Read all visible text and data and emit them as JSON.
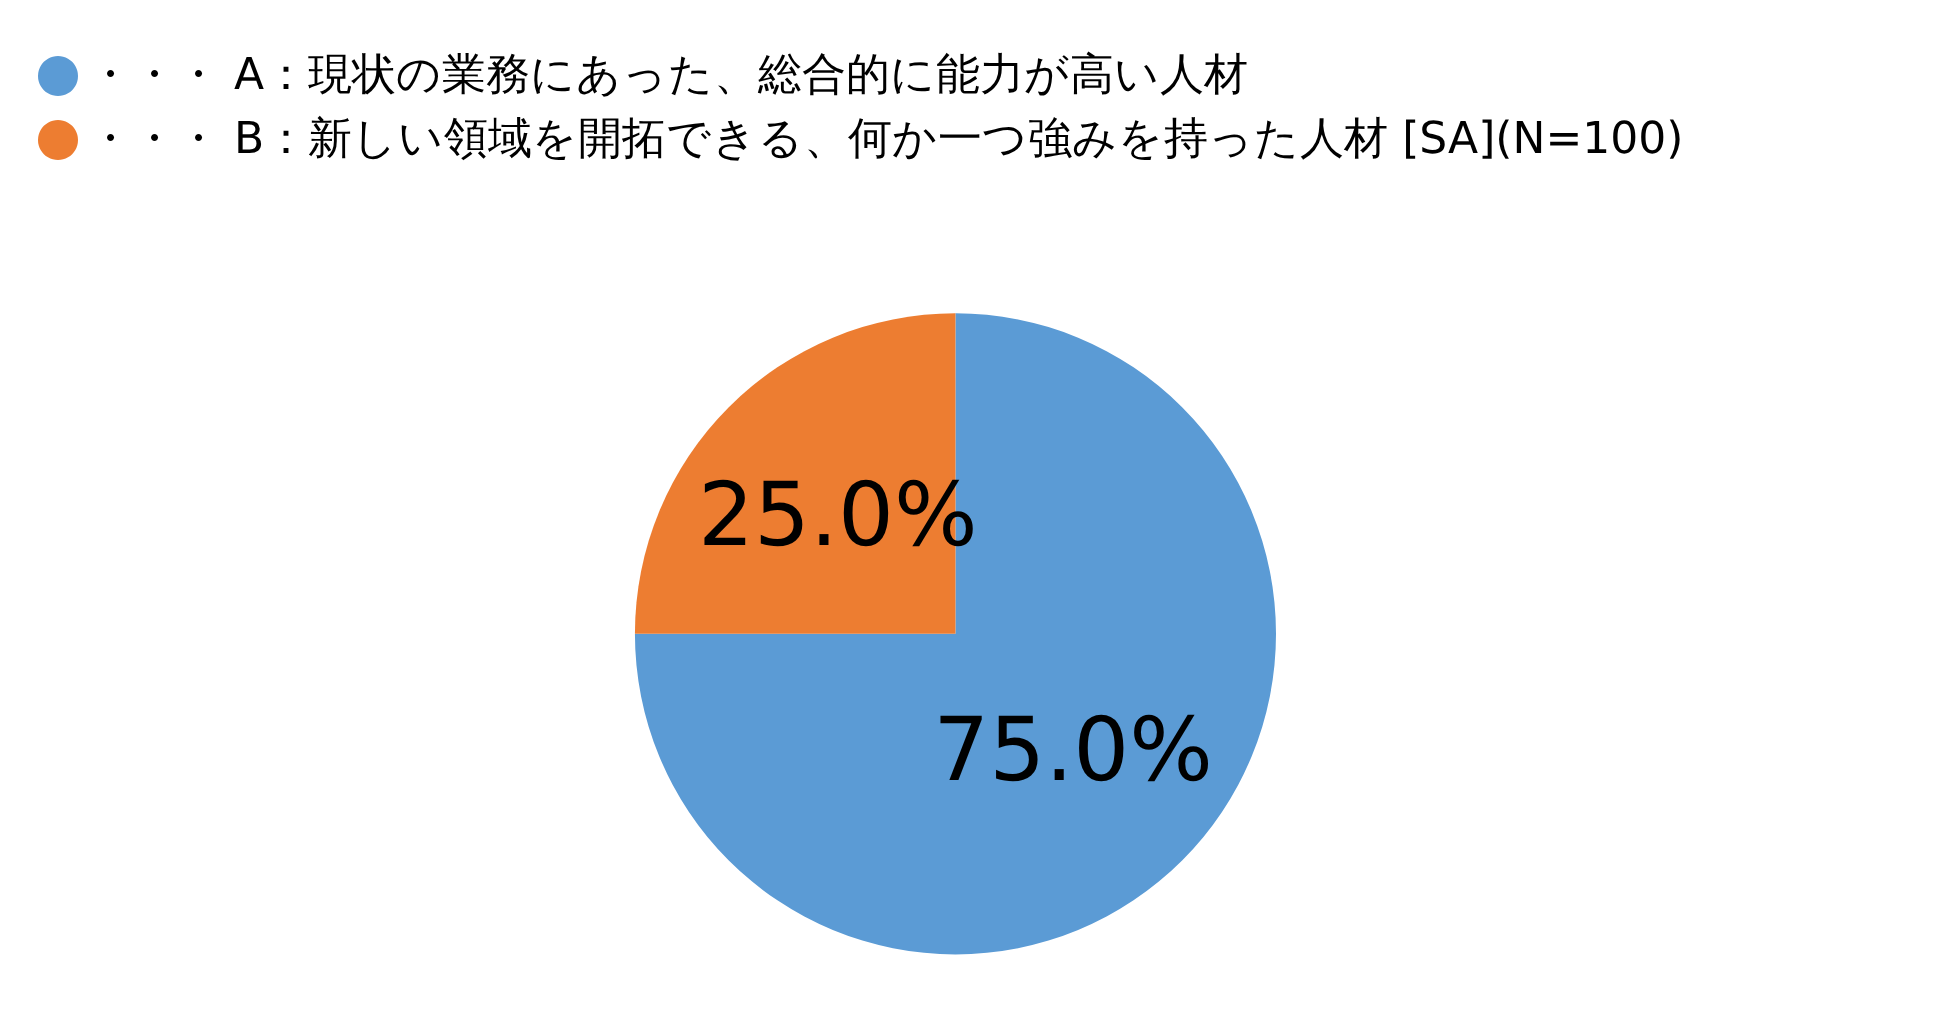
{
  "chart_data": {
    "type": "pie",
    "categories": [
      "・・・ A：現状の業務にあった、総合的に能力が高い人材",
      "・・・ B：新しい領域を開拓できる、何か一つ強みを持った人材 [SA](N=100)"
    ],
    "values": [
      75,
      25
    ],
    "colors": [
      "#5b9bd5",
      "#ed7d31"
    ],
    "value_labels": [
      "75.0%",
      "25.0%"
    ],
    "legend": "top left"
  }
}
